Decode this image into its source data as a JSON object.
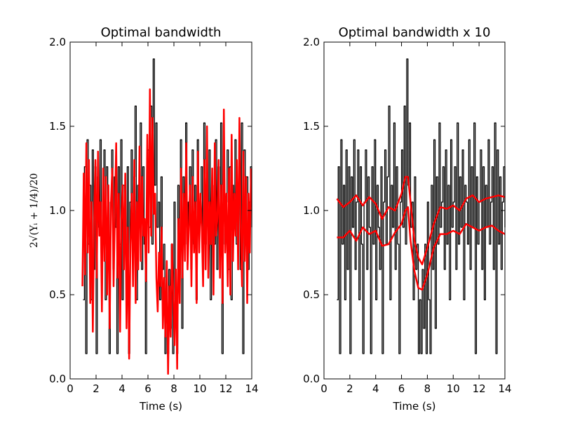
{
  "chart_data": [
    {
      "type": "line",
      "title": "Optimal bandwidth",
      "xlabel": "Time (s)",
      "ylabel": "2√(Yᵢ + 1/4)/20",
      "xlim": [
        0,
        14
      ],
      "ylim": [
        0.0,
        2.0
      ],
      "xticks": [
        0,
        2,
        4,
        6,
        8,
        10,
        12,
        14
      ],
      "xtick_labels": [
        "0",
        "2",
        "4",
        "6",
        "8",
        "10",
        "12",
        "14"
      ],
      "yticks": [
        0.0,
        0.5,
        1.0,
        1.5,
        2.0
      ],
      "ytick_labels": [
        "0.0",
        "0.5",
        "1.0",
        "1.5",
        "2.0"
      ],
      "grid": false,
      "legend": "none",
      "series": [
        {
          "role": "data",
          "color": "#000000",
          "x": [
            1.0,
            1.1,
            1.2,
            1.3,
            1.4,
            1.5,
            1.6,
            1.7,
            1.8,
            1.9,
            2.0,
            2.1,
            2.2,
            2.3,
            2.4,
            2.5,
            2.6,
            2.7,
            2.8,
            2.9,
            3.0,
            3.1,
            3.2,
            3.3,
            3.4,
            3.5,
            3.6,
            3.7,
            3.8,
            3.9,
            4.0,
            4.1,
            4.2,
            4.3,
            4.4,
            4.5,
            4.6,
            4.7,
            4.8,
            4.9,
            5.0,
            5.1,
            5.2,
            5.3,
            5.4,
            5.5,
            5.6,
            5.7,
            5.8,
            5.9,
            6.0,
            6.1,
            6.2,
            6.3,
            6.4,
            6.5,
            6.6,
            6.7,
            6.8,
            6.9,
            7.0,
            7.1,
            7.2,
            7.3,
            7.4,
            7.5,
            7.6,
            7.7,
            7.8,
            7.9,
            8.0,
            8.1,
            8.2,
            8.3,
            8.4,
            8.5,
            8.6,
            8.7,
            8.8,
            8.9,
            9.0,
            9.1,
            9.2,
            9.3,
            9.4,
            9.5,
            9.6,
            9.7,
            9.8,
            9.9,
            10.0,
            10.1,
            10.2,
            10.3,
            10.4,
            10.5,
            10.6,
            10.7,
            10.8,
            10.9,
            11.0,
            11.1,
            11.2,
            11.3,
            11.4,
            11.5,
            11.6,
            11.7,
            11.8,
            11.9,
            12.0,
            12.1,
            12.2,
            12.3,
            12.4,
            12.5,
            12.6,
            12.7,
            12.8,
            12.9,
            13.0,
            13.1,
            13.2,
            13.3,
            13.4,
            13.5,
            13.6,
            13.7,
            13.8,
            13.9,
            14.0
          ],
          "y": [
            0.47,
            1.26,
            0.15,
            1.42,
            0.8,
            1.15,
            0.47,
            1.36,
            0.65,
            1.26,
            0.15,
            1.2,
            0.9,
            1.42,
            0.65,
            1.05,
            1.36,
            0.47,
            1.26,
            0.8,
            0.15,
            1.05,
            1.36,
            0.65,
            1.2,
            0.9,
            0.15,
            1.26,
            0.8,
            1.42,
            0.47,
            1.15,
            0.9,
            0.65,
            1.26,
            0.15,
            1.05,
            1.36,
            0.8,
            1.2,
            1.62,
            0.47,
            1.15,
            0.9,
            1.52,
            0.65,
            1.26,
            0.8,
            0.15,
            1.05,
            1.36,
            0.9,
            1.62,
            0.8,
            1.9,
            1.15,
            1.52,
            0.9,
            1.05,
            0.47,
            1.2,
            0.65,
            0.8,
            0.15,
            0.47,
            0.15,
            0.65,
            0.3,
            0.8,
            0.15,
            1.05,
            0.47,
            0.15,
            1.15,
            0.65,
            1.42,
            0.3,
            1.2,
            0.8,
            1.52,
            0.9,
            1.05,
            1.26,
            0.65,
            1.36,
            0.8,
            1.15,
            0.47,
            1.42,
            0.9,
            1.05,
            1.26,
            0.65,
            1.52,
            0.8,
            1.2,
            0.9,
            1.36,
            0.47,
            1.15,
            1.05,
            0.8,
            1.42,
            0.65,
            1.26,
            0.9,
            1.52,
            0.15,
            1.2,
            0.8,
            1.05,
            1.36,
            0.65,
            1.26,
            0.47,
            1.15,
            0.9,
            1.42,
            0.8,
            1.05,
            1.26,
            0.65,
            1.52,
            0.15,
            1.36,
            0.8,
            1.2,
            0.65,
            1.05,
            1.26,
            0.9
          ]
        },
        {
          "role": "estimate",
          "color": "#ff0000",
          "x": [
            0.95,
            1.05,
            1.15,
            1.25,
            1.35,
            1.45,
            1.55,
            1.65,
            1.75,
            1.85,
            1.95,
            2.05,
            2.15,
            2.25,
            2.35,
            2.45,
            2.55,
            2.65,
            2.75,
            2.85,
            2.95,
            3.05,
            3.15,
            3.25,
            3.35,
            3.45,
            3.55,
            3.65,
            3.75,
            3.85,
            3.95,
            4.05,
            4.15,
            4.25,
            4.35,
            4.45,
            4.55,
            4.65,
            4.75,
            4.85,
            4.95,
            5.05,
            5.15,
            5.25,
            5.35,
            5.45,
            5.55,
            5.65,
            5.75,
            5.85,
            5.95,
            6.05,
            6.15,
            6.25,
            6.35,
            6.45,
            6.55,
            6.65,
            6.75,
            6.85,
            6.95,
            7.05,
            7.15,
            7.25,
            7.35,
            7.45,
            7.55,
            7.65,
            7.75,
            7.85,
            7.95,
            8.05,
            8.15,
            8.25,
            8.35,
            8.45,
            8.55,
            8.65,
            8.75,
            8.85,
            8.95,
            9.05,
            9.15,
            9.25,
            9.35,
            9.45,
            9.55,
            9.65,
            9.75,
            9.85,
            9.95,
            10.05,
            10.15,
            10.25,
            10.35,
            10.45,
            10.55,
            10.65,
            10.75,
            10.85,
            10.95,
            11.05,
            11.15,
            11.25,
            11.35,
            11.45,
            11.55,
            11.65,
            11.75,
            11.85,
            11.95,
            12.05,
            12.15,
            12.25,
            12.35,
            12.45,
            12.55,
            12.65,
            12.75,
            12.85,
            12.95,
            13.05,
            13.15,
            13.25,
            13.35,
            13.45,
            13.55,
            13.65,
            13.75,
            13.85,
            13.95
          ],
          "y": [
            0.55,
            1.22,
            0.62,
            1.4,
            0.75,
            1.3,
            0.45,
            1.05,
            0.28,
            0.95,
            1.3,
            0.6,
            1.35,
            0.85,
            1.05,
            0.4,
            1.25,
            0.7,
            1.2,
            0.5,
            1.15,
            0.3,
            1.05,
            1.25,
            0.55,
            0.98,
            1.4,
            0.6,
            1.1,
            0.28,
            0.95,
            1.15,
            0.65,
            1.22,
            0.3,
            0.9,
            0.12,
            0.8,
            1.1,
            0.55,
            1.3,
            0.45,
            1.05,
            0.65,
            1.38,
            0.7,
            1.2,
            0.85,
            0.95,
            0.58,
            1.45,
            0.75,
            1.72,
            0.85,
            1.55,
            0.98,
            1.1,
            0.6,
            0.4,
            0.75,
            0.55,
            0.9,
            0.3,
            0.6,
            0.25,
            0.7,
            0.03,
            0.55,
            0.25,
            0.8,
            0.5,
            0.2,
            0.65,
            0.06,
            0.95,
            0.45,
            1.25,
            0.6,
            1.1,
            0.7,
            1.4,
            0.65,
            0.9,
            1.15,
            0.55,
            1.2,
            0.75,
            1.05,
            0.45,
            1.35,
            0.75,
            1.1,
            0.9,
            0.55,
            1.3,
            0.65,
            1.5,
            0.6,
            1.05,
            0.8,
            1.25,
            0.5,
            1.4,
            0.85,
            0.95,
            1.3,
            0.6,
            1.15,
            0.45,
            1.6,
            0.75,
            1.1,
            0.55,
            1.25,
            0.5,
            1.45,
            0.7,
            1.1,
            0.85,
            1.3,
            0.65,
            1.55,
            0.9,
            0.55,
            1.35,
            0.7,
            1.2,
            0.45,
            1.1,
            0.75,
            1.25
          ]
        }
      ]
    },
    {
      "type": "line",
      "title": "Optimal bandwidth x 10",
      "xlabel": "Time (s)",
      "ylabel": "",
      "xlim": [
        0,
        14
      ],
      "ylim": [
        0.0,
        2.0
      ],
      "xticks": [
        0,
        2,
        4,
        6,
        8,
        10,
        12,
        14
      ],
      "xtick_labels": [
        "0",
        "2",
        "4",
        "6",
        "8",
        "10",
        "12",
        "14"
      ],
      "yticks": [
        0.0,
        0.5,
        1.0,
        1.5,
        2.0
      ],
      "ytick_labels": [
        "0.0",
        "0.5",
        "1.0",
        "1.5",
        "2.0"
      ],
      "grid": false,
      "legend": "none",
      "series": [
        {
          "role": "data",
          "color": "#000000",
          "x": [
            1.0,
            1.1,
            1.2,
            1.3,
            1.4,
            1.5,
            1.6,
            1.7,
            1.8,
            1.9,
            2.0,
            2.1,
            2.2,
            2.3,
            2.4,
            2.5,
            2.6,
            2.7,
            2.8,
            2.9,
            3.0,
            3.1,
            3.2,
            3.3,
            3.4,
            3.5,
            3.6,
            3.7,
            3.8,
            3.9,
            4.0,
            4.1,
            4.2,
            4.3,
            4.4,
            4.5,
            4.6,
            4.7,
            4.8,
            4.9,
            5.0,
            5.1,
            5.2,
            5.3,
            5.4,
            5.5,
            5.6,
            5.7,
            5.8,
            5.9,
            6.0,
            6.1,
            6.2,
            6.3,
            6.4,
            6.5,
            6.6,
            6.7,
            6.8,
            6.9,
            7.0,
            7.1,
            7.2,
            7.3,
            7.4,
            7.5,
            7.6,
            7.7,
            7.8,
            7.9,
            8.0,
            8.1,
            8.2,
            8.3,
            8.4,
            8.5,
            8.6,
            8.7,
            8.8,
            8.9,
            9.0,
            9.1,
            9.2,
            9.3,
            9.4,
            9.5,
            9.6,
            9.7,
            9.8,
            9.9,
            10.0,
            10.1,
            10.2,
            10.3,
            10.4,
            10.5,
            10.6,
            10.7,
            10.8,
            10.9,
            11.0,
            11.1,
            11.2,
            11.3,
            11.4,
            11.5,
            11.6,
            11.7,
            11.8,
            11.9,
            12.0,
            12.1,
            12.2,
            12.3,
            12.4,
            12.5,
            12.6,
            12.7,
            12.8,
            12.9,
            13.0,
            13.1,
            13.2,
            13.3,
            13.4,
            13.5,
            13.6,
            13.7,
            13.8,
            13.9,
            14.0
          ],
          "y": [
            0.47,
            1.26,
            0.15,
            1.42,
            0.8,
            1.15,
            0.47,
            1.36,
            0.65,
            1.26,
            0.15,
            1.2,
            0.9,
            1.42,
            0.65,
            1.05,
            1.36,
            0.47,
            1.26,
            0.8,
            0.15,
            1.05,
            1.36,
            0.65,
            1.2,
            0.9,
            0.15,
            1.26,
            0.8,
            1.42,
            0.47,
            1.15,
            0.9,
            0.65,
            1.26,
            0.15,
            1.05,
            1.36,
            0.8,
            1.2,
            1.62,
            0.47,
            1.15,
            0.9,
            1.52,
            0.65,
            1.26,
            0.8,
            0.15,
            1.05,
            1.36,
            0.9,
            1.62,
            0.8,
            1.9,
            1.15,
            1.52,
            0.9,
            1.05,
            0.47,
            1.2,
            0.65,
            0.8,
            0.15,
            0.47,
            0.15,
            0.65,
            0.3,
            0.8,
            0.15,
            1.05,
            0.47,
            0.15,
            1.15,
            0.65,
            1.42,
            0.3,
            1.2,
            0.8,
            1.52,
            0.9,
            1.05,
            1.26,
            0.65,
            1.36,
            0.8,
            1.15,
            0.47,
            1.42,
            0.9,
            1.05,
            1.26,
            0.65,
            1.52,
            0.8,
            1.2,
            0.9,
            1.36,
            0.47,
            1.15,
            1.05,
            0.8,
            1.42,
            0.65,
            1.26,
            0.9,
            1.52,
            0.15,
            1.2,
            0.8,
            1.05,
            1.36,
            0.65,
            1.26,
            0.47,
            1.15,
            0.9,
            1.42,
            0.8,
            1.05,
            1.26,
            0.65,
            1.52,
            0.15,
            1.36,
            0.8,
            1.2,
            0.65,
            1.05,
            1.26,
            0.9
          ]
        },
        {
          "role": "upper",
          "color": "#ff0000",
          "x": [
            1.0,
            1.5,
            2.0,
            2.5,
            3.0,
            3.5,
            4.0,
            4.5,
            5.0,
            5.5,
            6.0,
            6.3,
            6.5,
            6.7,
            7.0,
            7.3,
            7.6,
            8.0,
            8.5,
            9.0,
            9.5,
            10.0,
            10.5,
            11.0,
            11.5,
            12.0,
            12.5,
            13.0,
            13.5,
            14.0
          ],
          "y": [
            1.07,
            1.02,
            1.05,
            1.09,
            1.03,
            1.08,
            1.04,
            0.95,
            1.02,
            1.0,
            1.1,
            1.2,
            1.2,
            1.05,
            0.82,
            0.72,
            0.68,
            0.78,
            0.92,
            1.02,
            1.01,
            1.03,
            1.0,
            1.07,
            1.09,
            1.05,
            1.07,
            1.08,
            1.09,
            1.08
          ]
        },
        {
          "role": "lower",
          "color": "#ff0000",
          "x": [
            1.0,
            1.5,
            2.0,
            2.5,
            3.0,
            3.5,
            4.0,
            4.5,
            5.0,
            5.5,
            6.0,
            6.3,
            6.5,
            6.7,
            7.0,
            7.3,
            7.6,
            8.0,
            8.5,
            9.0,
            9.5,
            10.0,
            10.5,
            11.0,
            11.5,
            12.0,
            12.5,
            13.0,
            13.5,
            14.0
          ],
          "y": [
            0.84,
            0.84,
            0.88,
            0.82,
            0.9,
            0.86,
            0.88,
            0.79,
            0.8,
            0.87,
            0.92,
            1.0,
            1.02,
            0.82,
            0.64,
            0.54,
            0.53,
            0.62,
            0.78,
            0.86,
            0.86,
            0.88,
            0.86,
            0.92,
            0.9,
            0.88,
            0.9,
            0.91,
            0.88,
            0.86
          ]
        }
      ]
    }
  ]
}
